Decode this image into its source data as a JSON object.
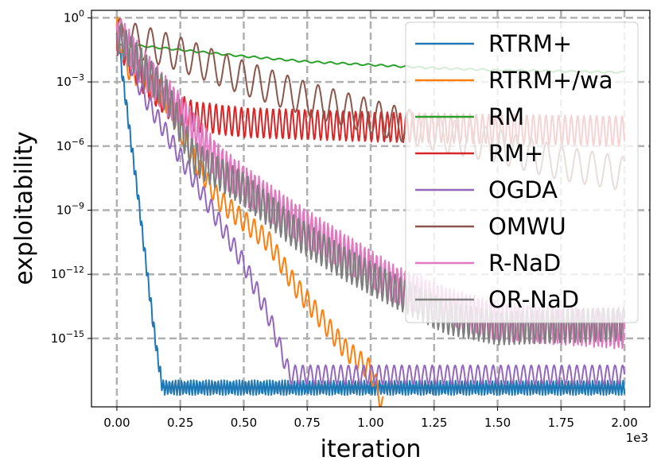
{
  "chart_data": {
    "type": "line",
    "title": "",
    "xlabel": "iteration",
    "ylabel": "exploitability",
    "x_scale_note": "1e3",
    "xlim": [
      -0.1,
      2.1
    ],
    "ylim_log10": [
      -18.2,
      0.35
    ],
    "grid": true,
    "legend_position": "top-right",
    "x_ticks": [
      {
        "value": 0.0,
        "label": "0.00"
      },
      {
        "value": 0.25,
        "label": "0.25"
      },
      {
        "value": 0.5,
        "label": "0.50"
      },
      {
        "value": 0.75,
        "label": "0.75"
      },
      {
        "value": 1.0,
        "label": "1.00"
      },
      {
        "value": 1.25,
        "label": "1.25"
      },
      {
        "value": 1.5,
        "label": "1.50"
      },
      {
        "value": 1.75,
        "label": "1.75"
      },
      {
        "value": 2.0,
        "label": "2.00"
      }
    ],
    "y_ticks": [
      {
        "value": 0,
        "base": "10",
        "exp": "0"
      },
      {
        "value": -3,
        "base": "10",
        "exp": "−3"
      },
      {
        "value": -6,
        "base": "10",
        "exp": "−6"
      },
      {
        "value": -9,
        "base": "10",
        "exp": "−9"
      },
      {
        "value": -12,
        "base": "10",
        "exp": "−12"
      },
      {
        "value": -15,
        "base": "10",
        "exp": "−15"
      }
    ],
    "series": [
      {
        "name": "RTRM+",
        "color": "#1f77b4",
        "osc": 0.35,
        "period": 0.012,
        "points": [
          [
            0.0,
            -0.3
          ],
          [
            0.02,
            -2.5
          ],
          [
            0.04,
            -4.3
          ],
          [
            0.06,
            -6.2
          ],
          [
            0.08,
            -8.0
          ],
          [
            0.1,
            -10.0
          ],
          [
            0.12,
            -12.0
          ],
          [
            0.14,
            -14.0
          ],
          [
            0.16,
            -15.8
          ],
          [
            0.18,
            -17.3
          ],
          [
            0.2,
            -17.3
          ],
          [
            2.0,
            -17.3
          ]
        ]
      },
      {
        "name": "RTRM+/wa",
        "color": "#ff7f0e",
        "osc": 0.5,
        "period": 0.03,
        "points": [
          [
            0.0,
            -0.4
          ],
          [
            0.05,
            -2.5
          ],
          [
            0.1,
            -2.8
          ],
          [
            0.2,
            -4.0
          ],
          [
            0.3,
            -6.5
          ],
          [
            0.4,
            -8.5
          ],
          [
            0.5,
            -9.5
          ],
          [
            0.6,
            -10.5
          ],
          [
            0.7,
            -12.5
          ],
          [
            0.8,
            -14.0
          ],
          [
            0.9,
            -15.5
          ],
          [
            1.0,
            -16.5
          ],
          [
            1.03,
            -17.5
          ],
          [
            1.05,
            -18.2
          ]
        ]
      },
      {
        "name": "RM",
        "color": "#2ca02c",
        "osc": 0.04,
        "period": 0.05,
        "points": [
          [
            0.0,
            -1.2
          ],
          [
            0.25,
            -1.5
          ],
          [
            0.5,
            -1.8
          ],
          [
            0.75,
            -2.05
          ],
          [
            1.0,
            -2.2
          ],
          [
            1.25,
            -2.35
          ],
          [
            1.5,
            -2.45
          ],
          [
            1.75,
            -2.5
          ],
          [
            2.0,
            -2.55
          ]
        ]
      },
      {
        "name": "RM+",
        "color": "#d62728",
        "osc": 0.7,
        "period": 0.025,
        "points": [
          [
            0.0,
            -1.0
          ],
          [
            0.1,
            -2.8
          ],
          [
            0.2,
            -4.0
          ],
          [
            0.3,
            -4.6
          ],
          [
            0.5,
            -4.9
          ],
          [
            1.0,
            -5.1
          ],
          [
            1.5,
            -5.2
          ],
          [
            2.0,
            -5.3
          ]
        ]
      },
      {
        "name": "OGDA",
        "color": "#9467bd",
        "osc": 0.45,
        "period": 0.03,
        "points": [
          [
            0.0,
            -0.5
          ],
          [
            0.1,
            -3.5
          ],
          [
            0.2,
            -5.5
          ],
          [
            0.3,
            -7.5
          ],
          [
            0.4,
            -9.5
          ],
          [
            0.5,
            -11.5
          ],
          [
            0.6,
            -14.0
          ],
          [
            0.66,
            -16.0
          ],
          [
            0.68,
            -16.7
          ],
          [
            2.0,
            -16.7
          ]
        ]
      },
      {
        "name": "OMWU",
        "color": "#8c564b",
        "osc": 0.8,
        "period": 0.06,
        "points": [
          [
            0.0,
            -0.8
          ],
          [
            0.25,
            -1.7
          ],
          [
            0.5,
            -2.8
          ],
          [
            0.75,
            -3.8
          ],
          [
            1.0,
            -4.6
          ],
          [
            1.25,
            -5.4
          ],
          [
            1.5,
            -6.0
          ],
          [
            1.75,
            -6.8
          ],
          [
            2.0,
            -7.3
          ]
        ]
      },
      {
        "name": "R-NaD",
        "color": "#e377c2",
        "osc": 0.9,
        "period": 0.016,
        "points": [
          [
            0.0,
            -0.6
          ],
          [
            0.1,
            -2.3
          ],
          [
            0.2,
            -3.7
          ],
          [
            0.3,
            -5.2
          ],
          [
            0.4,
            -6.8
          ],
          [
            0.5,
            -7.8
          ],
          [
            0.7,
            -9.5
          ],
          [
            0.9,
            -11.0
          ],
          [
            1.1,
            -12.5
          ],
          [
            1.3,
            -13.5
          ],
          [
            1.5,
            -14.2
          ],
          [
            2.0,
            -14.6
          ]
        ]
      },
      {
        "name": "OR-NaD",
        "color": "#7f7f7f",
        "osc": 0.8,
        "period": 0.02,
        "points": [
          [
            0.0,
            -0.8
          ],
          [
            0.2,
            -3.7
          ],
          [
            0.3,
            -6.5
          ],
          [
            0.5,
            -8.0
          ],
          [
            0.7,
            -10.0
          ],
          [
            0.9,
            -11.5
          ],
          [
            1.1,
            -12.8
          ],
          [
            1.3,
            -14.0
          ],
          [
            1.5,
            -14.5
          ],
          [
            2.0,
            -14.3
          ]
        ]
      }
    ]
  }
}
